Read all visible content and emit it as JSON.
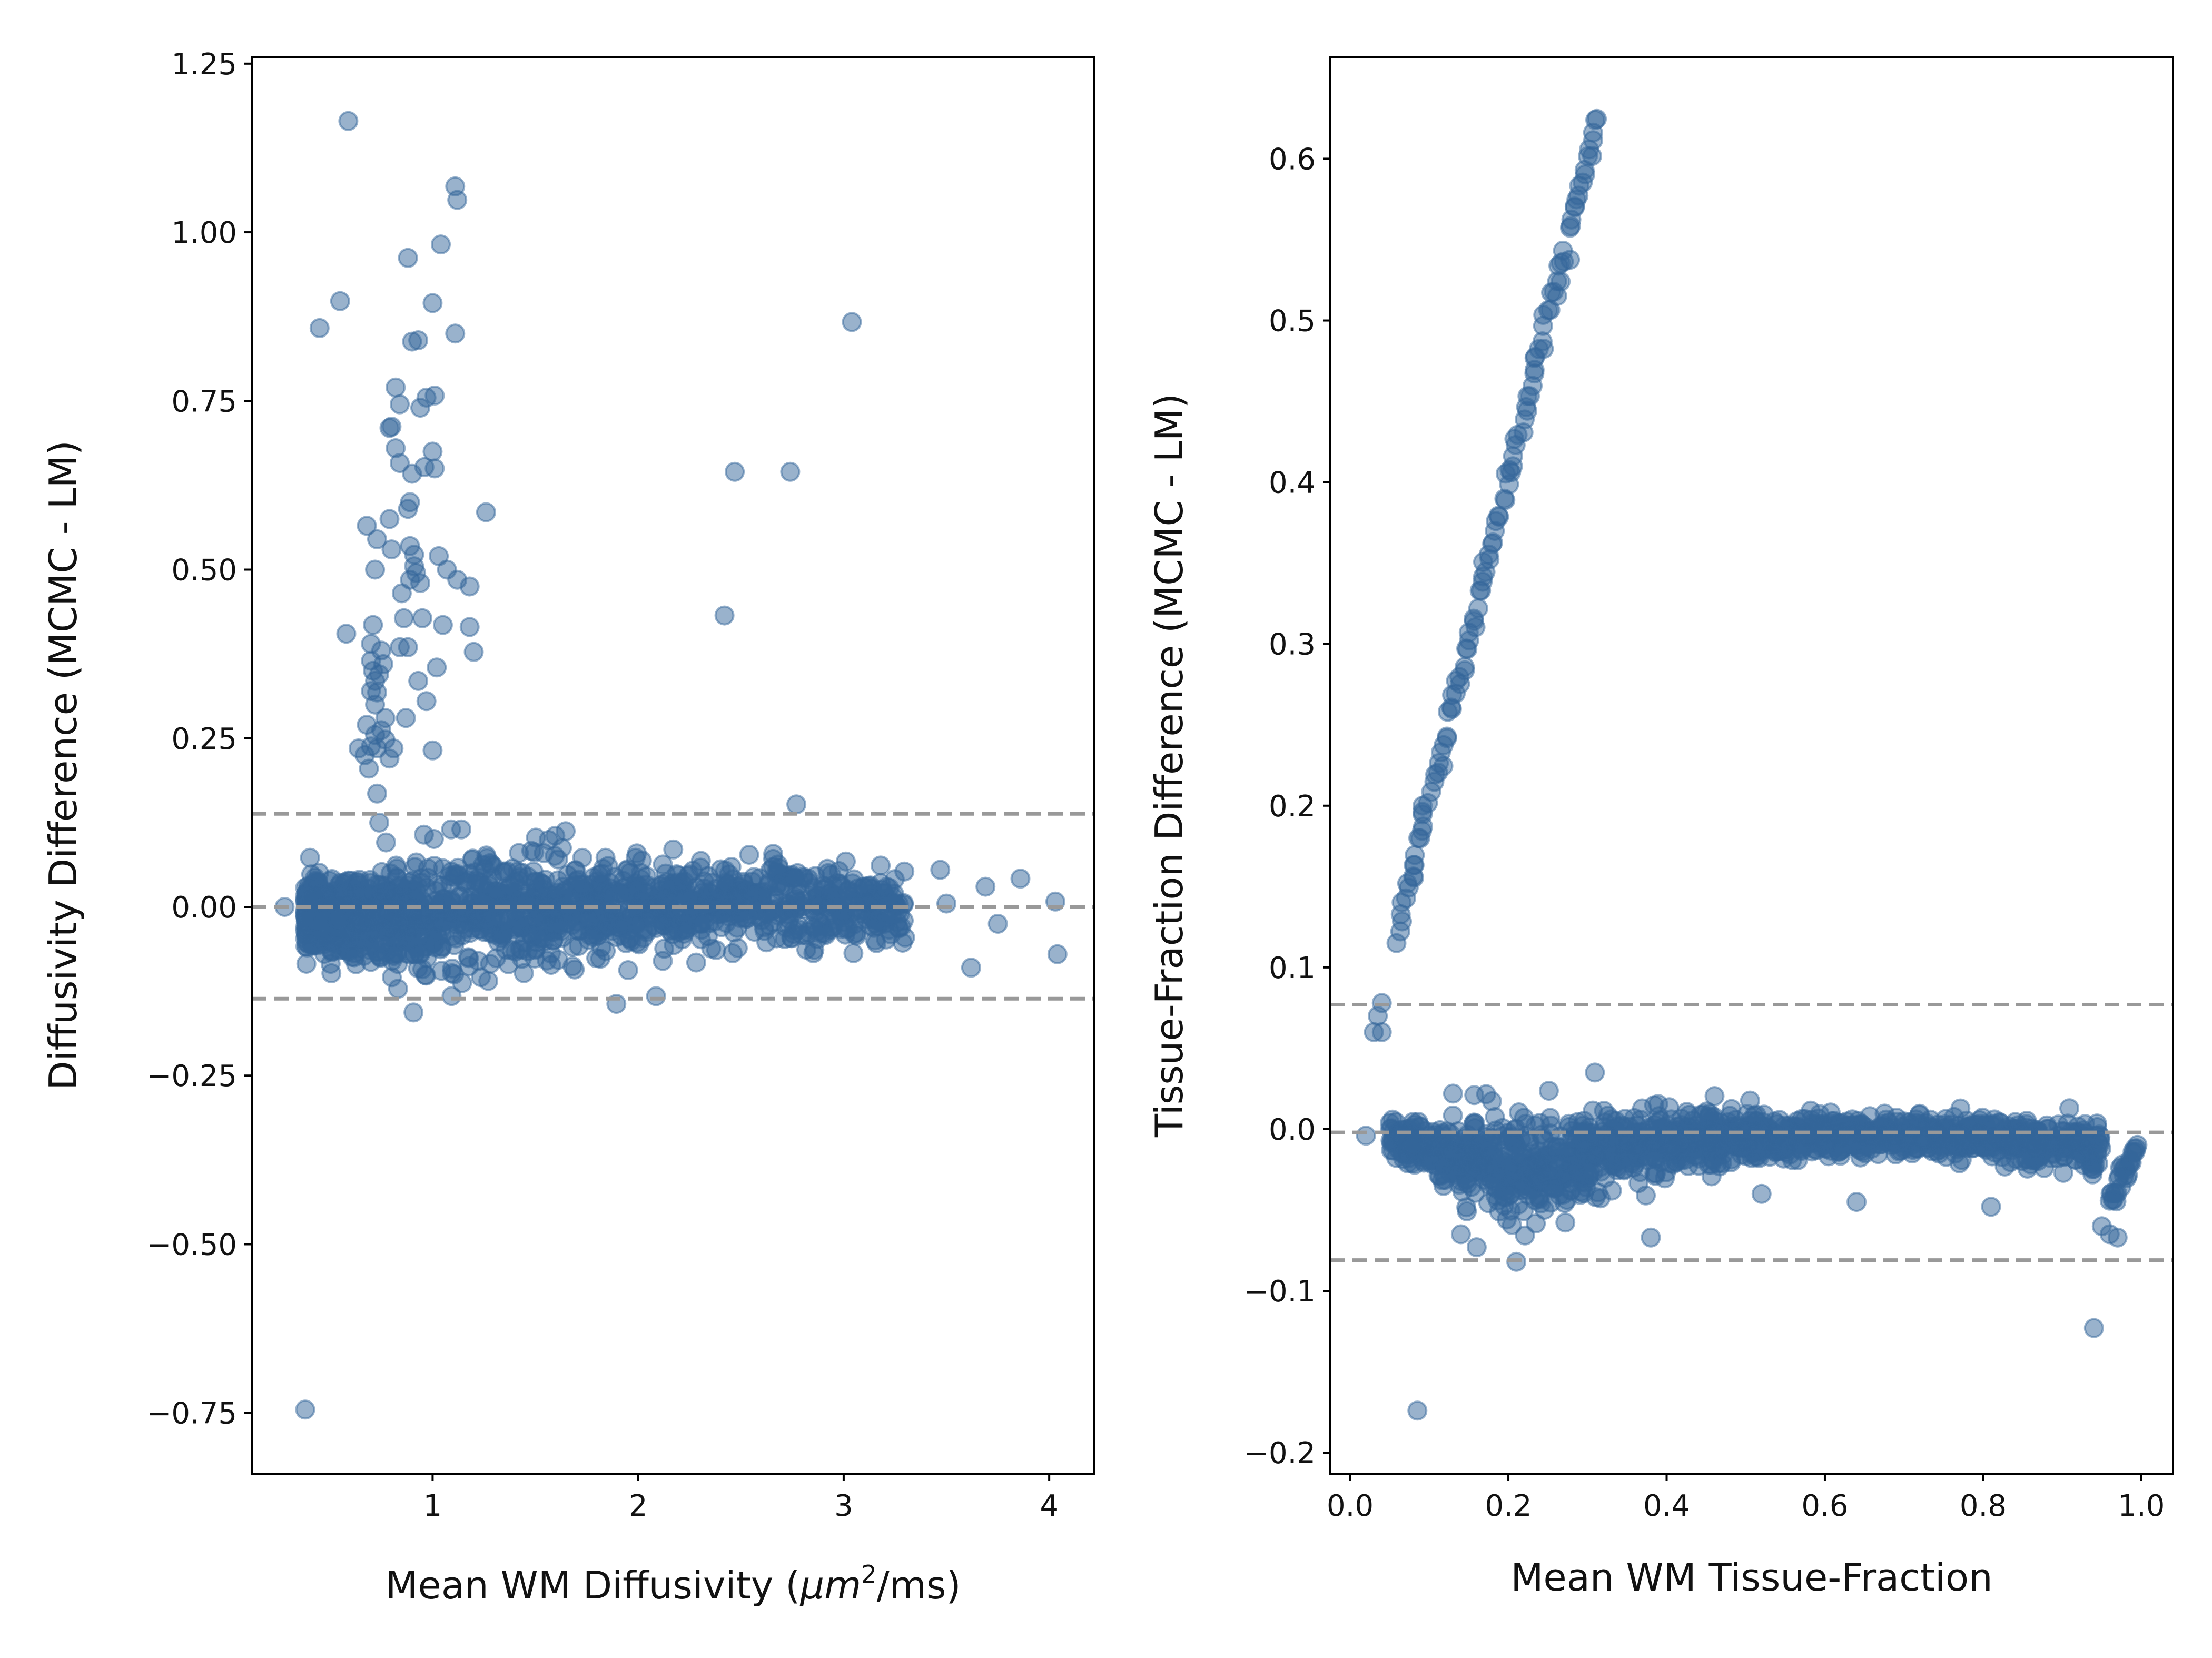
{
  "colors": {
    "marker": "#336699",
    "reference_line": "#999999",
    "axes": "#000000"
  },
  "chart_data": [
    {
      "type": "scatter",
      "xlabel_prefix": "Mean WM Diffusivity (",
      "xlabel_unit": "μm",
      "xlabel_sup": "2",
      "xlabel_suffix": "/ms)",
      "ylabel": "Diffusivity Difference (MCMC - LM)",
      "xlim": [
        0.12,
        4.22
      ],
      "ylim": [
        -0.84,
        1.26
      ],
      "xticks": [
        1,
        2,
        3,
        4
      ],
      "xtick_labels": [
        "1",
        "2",
        "3",
        "4"
      ],
      "yticks": [
        -0.75,
        -0.5,
        -0.25,
        0.0,
        0.25,
        0.5,
        0.75,
        1.0,
        1.25
      ],
      "ytick_labels": [
        "−0.75",
        "−0.50",
        "−0.25",
        "0.00",
        "0.25",
        "0.50",
        "0.75",
        "1.00",
        "1.25"
      ],
      "reference_lines": {
        "mean": 0.0,
        "upper_limit": 0.138,
        "lower_limit": -0.136
      },
      "outliers": [
        [
          0.59,
          1.165
        ],
        [
          1.11,
          1.068
        ],
        [
          1.12,
          1.048
        ],
        [
          0.55,
          0.898
        ],
        [
          0.45,
          0.858
        ],
        [
          0.88,
          0.962
        ],
        [
          1.04,
          0.982
        ],
        [
          1.0,
          0.895
        ],
        [
          0.9,
          0.838
        ],
        [
          0.93,
          0.84
        ],
        [
          1.11,
          0.85
        ],
        [
          0.82,
          0.77
        ],
        [
          0.97,
          0.755
        ],
        [
          1.01,
          0.758
        ],
        [
          0.84,
          0.745
        ],
        [
          0.94,
          0.74
        ],
        [
          0.79,
          0.71
        ],
        [
          0.8,
          0.712
        ],
        [
          0.82,
          0.68
        ],
        [
          1.0,
          0.675
        ],
        [
          0.84,
          0.658
        ],
        [
          0.9,
          0.642
        ],
        [
          0.96,
          0.652
        ],
        [
          1.01,
          0.65
        ],
        [
          0.89,
          0.6
        ],
        [
          0.88,
          0.59
        ],
        [
          1.26,
          0.585
        ],
        [
          0.79,
          0.575
        ],
        [
          0.68,
          0.565
        ],
        [
          0.73,
          0.545
        ],
        [
          0.8,
          0.53
        ],
        [
          0.89,
          0.535
        ],
        [
          0.91,
          0.522
        ],
        [
          1.03,
          0.52
        ],
        [
          0.91,
          0.505
        ],
        [
          0.92,
          0.495
        ],
        [
          1.07,
          0.5
        ],
        [
          0.89,
          0.485
        ],
        [
          0.94,
          0.48
        ],
        [
          1.12,
          0.485
        ],
        [
          1.18,
          0.475
        ],
        [
          0.85,
          0.465
        ],
        [
          0.72,
          0.5
        ],
        [
          0.71,
          0.418
        ],
        [
          0.86,
          0.428
        ],
        [
          0.95,
          0.428
        ],
        [
          1.05,
          0.418
        ],
        [
          1.18,
          0.415
        ],
        [
          0.58,
          0.405
        ],
        [
          0.7,
          0.39
        ],
        [
          0.84,
          0.385
        ],
        [
          0.88,
          0.385
        ],
        [
          0.75,
          0.38
        ],
        [
          1.2,
          0.378
        ],
        [
          0.7,
          0.365
        ],
        [
          0.76,
          0.36
        ],
        [
          0.71,
          0.35
        ],
        [
          0.74,
          0.345
        ],
        [
          1.02,
          0.355
        ],
        [
          0.72,
          0.335
        ],
        [
          0.93,
          0.335
        ],
        [
          0.7,
          0.32
        ],
        [
          0.73,
          0.318
        ],
        [
          0.72,
          0.3
        ],
        [
          0.97,
          0.305
        ],
        [
          0.87,
          0.28
        ],
        [
          0.77,
          0.28
        ],
        [
          0.68,
          0.27
        ],
        [
          0.75,
          0.262
        ],
        [
          0.72,
          0.255
        ],
        [
          0.77,
          0.248
        ],
        [
          0.64,
          0.235
        ],
        [
          0.7,
          0.238
        ],
        [
          0.73,
          0.235
        ],
        [
          0.81,
          0.235
        ],
        [
          1.0,
          0.232
        ],
        [
          0.67,
          0.225
        ],
        [
          0.79,
          0.22
        ],
        [
          0.69,
          0.205
        ],
        [
          0.73,
          0.168
        ],
        [
          0.74,
          0.125
        ],
        [
          1.09,
          0.115
        ],
        [
          1.14,
          0.115
        ],
        [
          1.28,
          0.065
        ],
        [
          1.42,
          0.08
        ],
        [
          2.42,
          0.432
        ],
        [
          2.47,
          0.645
        ],
        [
          2.74,
          0.645
        ],
        [
          3.04,
          0.867
        ],
        [
          2.77,
          0.152
        ],
        [
          0.38,
          -0.745
        ],
        [
          3.62,
          -0.09
        ],
        [
          4.04,
          -0.07
        ],
        [
          3.75,
          -0.025
        ],
        [
          3.69,
          0.03
        ],
        [
          3.86,
          0.042
        ],
        [
          4.03,
          0.008
        ],
        [
          3.47,
          0.055
        ],
        [
          3.21,
          0.03
        ],
        [
          2.94,
          0.048
        ],
        [
          3.5,
          0.005
        ],
        [
          3.2,
          -0.025
        ],
        [
          2.12,
          -0.08
        ],
        [
          0.28,
          0.0
        ]
      ],
      "cluster_trend": [
        [
          0.38,
          -0.015
        ],
        [
          1.0,
          -0.01
        ],
        [
          1.8,
          0.0
        ],
        [
          2.6,
          0.005
        ],
        [
          3.3,
          0.0
        ]
      ],
      "cluster_spread": [
        [
          0.38,
          0.025
        ],
        [
          1.0,
          0.04
        ],
        [
          1.8,
          0.035
        ],
        [
          2.6,
          0.03
        ],
        [
          3.3,
          0.025
        ]
      ],
      "cluster_count": 1600
    },
    {
      "type": "scatter",
      "xlabel": "Mean WM Tissue-Fraction",
      "ylabel": "Tissue-Fraction Difference (MCMC - LM)",
      "xlim": [
        -0.025,
        1.04
      ],
      "ylim": [
        -0.213,
        0.663
      ],
      "xticks": [
        0.0,
        0.2,
        0.4,
        0.6,
        0.8,
        1.0
      ],
      "xtick_labels": [
        "0.0",
        "0.2",
        "0.4",
        "0.6",
        "0.8",
        "1.0"
      ],
      "yticks": [
        -0.2,
        -0.1,
        0.0,
        0.1,
        0.2,
        0.3,
        0.4,
        0.5,
        0.6
      ],
      "ytick_labels": [
        "−0.2",
        "−0.1",
        "0.0",
        "0.1",
        "0.2",
        "0.3",
        "0.4",
        "0.5",
        "0.6"
      ],
      "reference_lines": {
        "mean": -0.002,
        "upper_limit": 0.077,
        "lower_limit": -0.081
      },
      "diagonal_branch": {
        "x_start": 0.058,
        "x_end": 0.312,
        "y_start": 0.12,
        "y_end": 0.625,
        "count": 120
      },
      "outliers": [
        [
          0.03,
          0.06
        ],
        [
          0.04,
          0.06
        ],
        [
          0.035,
          0.07
        ],
        [
          0.04,
          0.078
        ],
        [
          0.085,
          -0.174
        ],
        [
          0.94,
          -0.123
        ],
        [
          0.95,
          -0.06
        ],
        [
          0.96,
          -0.065
        ],
        [
          0.97,
          -0.067
        ],
        [
          0.64,
          -0.045
        ],
        [
          0.81,
          -0.048
        ],
        [
          0.52,
          -0.04
        ],
        [
          0.38,
          -0.067
        ],
        [
          0.21,
          -0.082
        ],
        [
          0.13,
          0.022
        ],
        [
          0.02,
          -0.004
        ],
        [
          0.16,
          -0.073
        ],
        [
          0.14,
          -0.065
        ]
      ],
      "cluster_trend": [
        [
          0.05,
          -0.005
        ],
        [
          0.2,
          -0.025
        ],
        [
          0.4,
          -0.008
        ],
        [
          0.6,
          -0.003
        ],
        [
          0.8,
          -0.005
        ],
        [
          0.95,
          -0.01
        ]
      ],
      "cluster_spread": [
        [
          0.05,
          0.004
        ],
        [
          0.2,
          0.016
        ],
        [
          0.4,
          0.01
        ],
        [
          0.6,
          0.006
        ],
        [
          0.8,
          0.006
        ],
        [
          0.95,
          0.008
        ]
      ],
      "cluster_count": 1600,
      "tail_branch": {
        "x_start": 0.96,
        "x_end": 0.995,
        "y_start": -0.045,
        "y_end": -0.012,
        "count": 30
      }
    }
  ]
}
